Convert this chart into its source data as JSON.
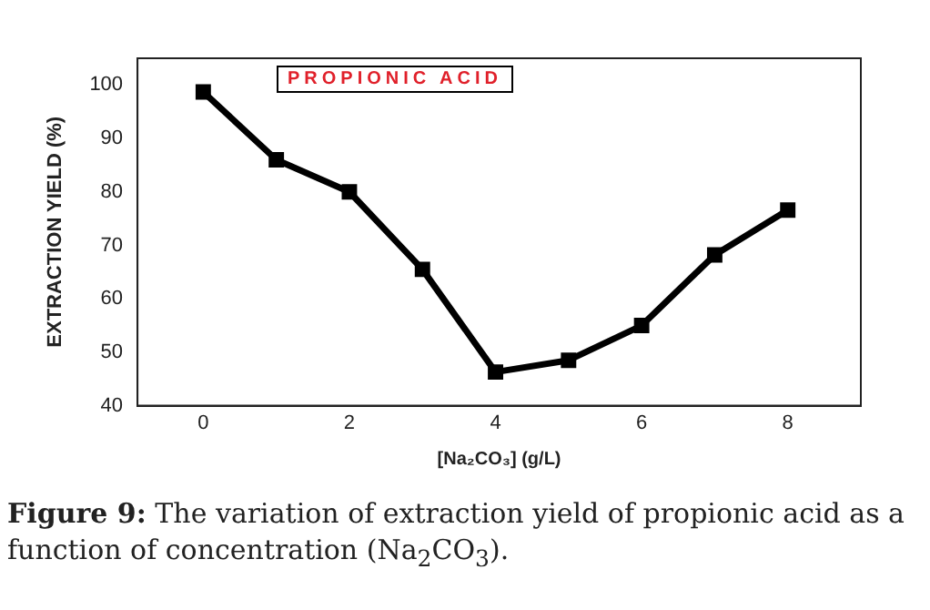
{
  "chart_data": {
    "type": "line",
    "title": "PROPIONIC ACID",
    "xlabel": "[Na₂CO₃] (g/L)",
    "ylabel": "EXTRACTION YIELD (%)",
    "x": [
      0,
      1,
      2,
      3,
      4,
      5,
      6,
      7,
      8
    ],
    "series": [
      {
        "color": "#000000",
        "values": [
          98.7,
          86,
          80,
          65.5,
          46.3,
          48.5,
          55,
          68.2,
          76.6
        ]
      }
    ],
    "xlim": [
      -0.9,
      9
    ],
    "xticks": [
      0,
      2,
      4,
      6,
      8
    ],
    "ylim": [
      40,
      105
    ],
    "yticks": [
      40,
      50,
      60,
      70,
      80,
      90,
      100
    ],
    "grid": false,
    "legend": false,
    "marker": "square",
    "line_style": "solid",
    "annotations": [
      "Figure 9: The variation of extraction yield of propionic acid as a function of concentration (Na$_{2}$CO$_{3}$)."
    ]
  }
}
